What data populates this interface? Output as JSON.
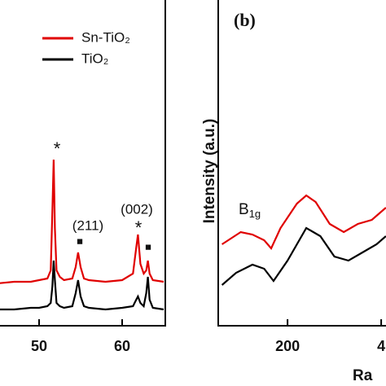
{
  "chart_data": [
    {
      "type": "line",
      "xlim": [
        45,
        65
      ],
      "xticks": [
        50,
        60
      ],
      "ylim": [
        0,
        100
      ],
      "series": [
        {
          "name": "Sn-TiO₂",
          "color": "#e00000",
          "x": [
            45,
            47,
            49,
            50,
            51,
            51.4,
            51.6,
            51.75,
            51.9,
            52.1,
            52.5,
            53,
            54,
            54.4,
            54.7,
            55,
            55.4,
            56,
            58,
            60,
            61.3,
            61.7,
            61.9,
            62.2,
            62.6,
            62.9,
            63.1,
            63.3,
            63.7,
            65
          ],
          "values": [
            13,
            13.5,
            13.5,
            14,
            14.5,
            17,
            35,
            51,
            30,
            17,
            15,
            14,
            14.5,
            18,
            22.5,
            18,
            14.5,
            14,
            13.5,
            14,
            16,
            24,
            28,
            19,
            16,
            17,
            20,
            16,
            14,
            13.5
          ]
        },
        {
          "name": "TiO₂",
          "color": "#000000",
          "x": [
            45,
            47,
            49,
            50,
            51,
            51.4,
            51.6,
            51.75,
            51.9,
            52.1,
            52.5,
            53,
            54,
            54.4,
            54.7,
            55,
            55.4,
            56,
            58,
            60,
            61.3,
            61.7,
            61.9,
            62.2,
            62.6,
            62.9,
            63.1,
            63.3,
            63.7,
            65
          ],
          "values": [
            5,
            5,
            5.5,
            5.5,
            6,
            7,
            12,
            20,
            14,
            7,
            6,
            5.5,
            6,
            10,
            14,
            9,
            6,
            5.5,
            5,
            5.5,
            6,
            8,
            9,
            7,
            6,
            10,
            15,
            8,
            5.5,
            5
          ]
        }
      ],
      "annotations": [
        "*",
        "(211)",
        "■",
        "(002)",
        "*",
        "■"
      ]
    },
    {
      "type": "line",
      "panel_label": "(b)",
      "y_label": "Intensity (a.u.)",
      "x_label": "Ra",
      "xlim": [
        52,
        410
      ],
      "xticks": [
        200,
        {
          "value": 400,
          "label": "4"
        }
      ],
      "ylim": [
        0,
        100
      ],
      "series": [
        {
          "color": "#e00000",
          "x": [
            60,
            100,
            125,
            150,
            165,
            185,
            220,
            240,
            260,
            290,
            320,
            350,
            380,
            410
          ],
          "values": [
            25,
            28.75,
            28,
            26.25,
            23.75,
            30,
            37.5,
            40,
            38,
            31.25,
            28.75,
            31.25,
            32.5,
            36.25
          ]
        },
        {
          "color": "#000000",
          "x": [
            60,
            90,
            125,
            150,
            170,
            200,
            240,
            270,
            300,
            330,
            360,
            390,
            410
          ],
          "values": [
            12.5,
            16.25,
            18.75,
            17.5,
            13.75,
            20,
            30,
            27.5,
            21.25,
            20,
            22.5,
            25,
            27.5
          ]
        }
      ],
      "annotations": [
        {
          "text": "B",
          "sub": "1g"
        }
      ]
    }
  ]
}
